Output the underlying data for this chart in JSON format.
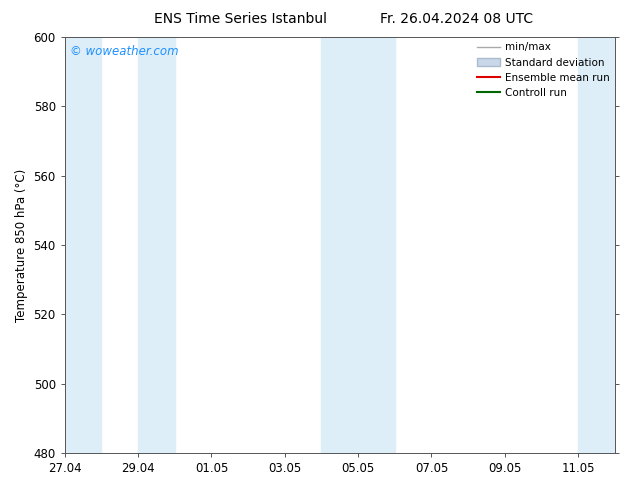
{
  "title_left": "ENS Time Series Istanbul",
  "title_right": "Fr. 26.04.2024 08 UTC",
  "ylabel": "Temperature 850 hPa (°C)",
  "ylim": [
    480,
    600
  ],
  "yticks": [
    480,
    500,
    520,
    540,
    560,
    580,
    600
  ],
  "xtick_labels": [
    "27.04",
    "29.04",
    "01.05",
    "03.05",
    "05.05",
    "07.05",
    "09.05",
    "11.05"
  ],
  "watermark": "© woweather.com",
  "watermark_color": "#1E90FF",
  "bg_color": "#ffffff",
  "plot_bg_color": "#ffffff",
  "shaded_color": "#ddeef8",
  "legend_items": [
    {
      "label": "min/max",
      "color": "#aaaaaa",
      "linewidth": 1.0
    },
    {
      "label": "Standard deviation",
      "color": "#c8d8e8",
      "linewidth": 4
    },
    {
      "label": "Ensemble mean run",
      "color": "#dd0000",
      "linewidth": 1.5
    },
    {
      "label": "Controll run",
      "color": "#006600",
      "linewidth": 1.5
    }
  ],
  "shaded_periods": [
    [
      "2024-04-27",
      "2024-04-28"
    ],
    [
      "2024-04-29",
      "2024-04-30"
    ],
    [
      "2024-05-04",
      "2024-05-06"
    ],
    [
      "2024-05-11",
      "2024-05-12"
    ]
  ],
  "start_date": "2024-04-27",
  "end_date": "2024-05-12"
}
